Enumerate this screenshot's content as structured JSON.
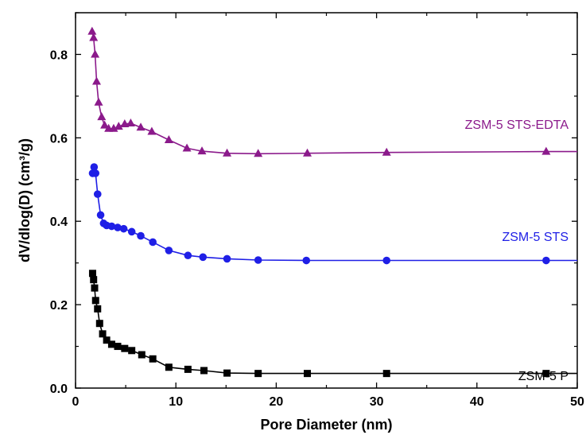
{
  "chart_data": {
    "type": "line",
    "xlabel": "Pore Diameter (nm)",
    "ylabel": "dV/dlog(D) (cm³/g)",
    "xlim": [
      0,
      50
    ],
    "ylim": [
      0,
      0.9
    ],
    "xticks": [
      "0",
      "10",
      "20",
      "30",
      "40",
      "50"
    ],
    "yticks": [
      "0.0",
      "0.2",
      "0.4",
      "0.6",
      "0.8"
    ],
    "grid": false,
    "legend": "inline labels next to each series",
    "series": [
      {
        "name": "ZSM-5 P",
        "color": "#000000",
        "marker": "square",
        "x": [
          1.7,
          1.8,
          1.9,
          2.0,
          2.2,
          2.4,
          2.7,
          3.1,
          3.6,
          4.2,
          4.9,
          5.6,
          6.6,
          7.7,
          9.3,
          11.2,
          12.8,
          15.1,
          18.2,
          23.1,
          31.0,
          46.9,
          50
        ],
        "y": [
          0.275,
          0.26,
          0.24,
          0.21,
          0.19,
          0.155,
          0.13,
          0.115,
          0.105,
          0.1,
          0.095,
          0.09,
          0.08,
          0.07,
          0.05,
          0.045,
          0.042,
          0.036,
          0.035,
          0.035,
          0.035,
          0.035,
          0.035
        ]
      },
      {
        "name": "ZSM-5 STS",
        "color": "#1f1fe6",
        "marker": "circle",
        "x": [
          1.7,
          1.85,
          2.0,
          2.2,
          2.5,
          2.8,
          3.1,
          3.6,
          4.2,
          4.8,
          5.6,
          6.5,
          7.7,
          9.3,
          11.2,
          12.7,
          15.1,
          18.2,
          23.0,
          31.0,
          46.9,
          50
        ],
        "y": [
          0.515,
          0.53,
          0.515,
          0.465,
          0.415,
          0.395,
          0.39,
          0.388,
          0.385,
          0.382,
          0.375,
          0.365,
          0.35,
          0.33,
          0.318,
          0.314,
          0.31,
          0.307,
          0.306,
          0.306,
          0.306,
          0.306
        ]
      },
      {
        "name": "ZSM-5 STS-EDTA",
        "color": "#8b1a8b",
        "marker": "triangle",
        "x": [
          1.65,
          1.8,
          1.95,
          2.1,
          2.3,
          2.6,
          2.9,
          3.3,
          3.8,
          4.3,
          4.9,
          5.5,
          6.5,
          7.6,
          9.3,
          11.1,
          12.6,
          15.1,
          18.2,
          23.1,
          31.0,
          46.9,
          50
        ],
        "y": [
          0.855,
          0.84,
          0.8,
          0.735,
          0.685,
          0.65,
          0.63,
          0.622,
          0.622,
          0.627,
          0.633,
          0.635,
          0.625,
          0.615,
          0.595,
          0.575,
          0.568,
          0.563,
          0.562,
          0.563,
          0.565,
          0.567,
          0.567
        ]
      }
    ]
  }
}
